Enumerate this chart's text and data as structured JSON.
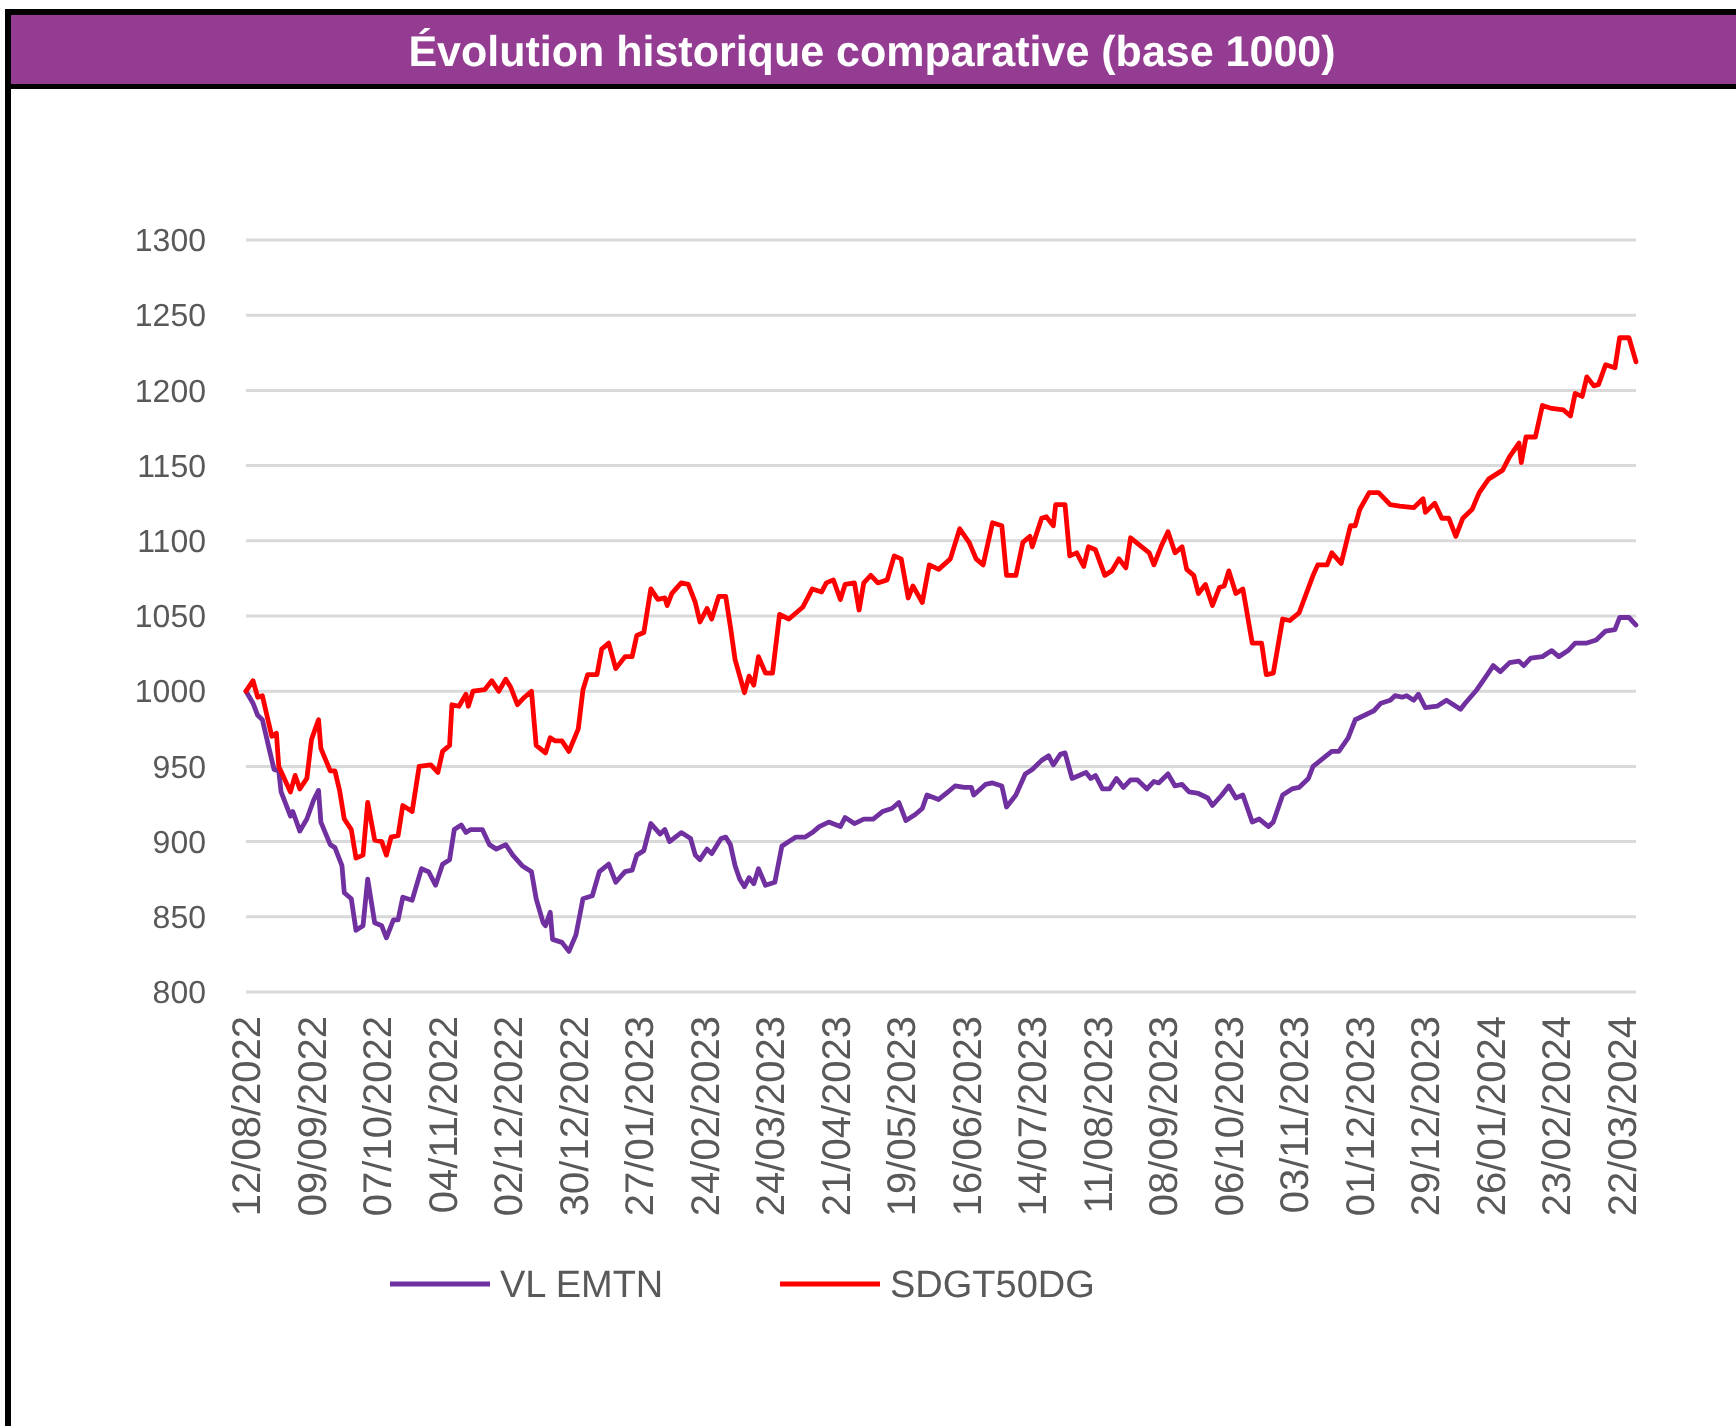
{
  "chart_data": {
    "type": "line",
    "title": "Évolution historique comparative (base 1000)",
    "xlim": [
      "2022-08-12",
      "2024-03-28"
    ],
    "xticks": [
      {
        "value": "2022-08-12",
        "label": "12/08/2022"
      },
      {
        "value": "2022-09-09",
        "label": "09/09/2022"
      },
      {
        "value": "2022-10-07",
        "label": "07/10/2022"
      },
      {
        "value": "2022-11-04",
        "label": "04/11/2022"
      },
      {
        "value": "2022-12-02",
        "label": "02/12/2022"
      },
      {
        "value": "2022-12-30",
        "label": "30/12/2022"
      },
      {
        "value": "2023-01-27",
        "label": "27/01/2023"
      },
      {
        "value": "2023-02-24",
        "label": "24/02/2023"
      },
      {
        "value": "2023-03-24",
        "label": "24/03/2023"
      },
      {
        "value": "2023-04-21",
        "label": "21/04/2023"
      },
      {
        "value": "2023-05-19",
        "label": "19/05/2023"
      },
      {
        "value": "2023-06-16",
        "label": "16/06/2023"
      },
      {
        "value": "2023-07-14",
        "label": "14/07/2023"
      },
      {
        "value": "2023-08-11",
        "label": "11/08/2023"
      },
      {
        "value": "2023-09-08",
        "label": "08/09/2023"
      },
      {
        "value": "2023-10-06",
        "label": "06/10/2023"
      },
      {
        "value": "2023-11-03",
        "label": "03/11/2023"
      },
      {
        "value": "2023-12-01",
        "label": "01/12/2023"
      },
      {
        "value": "2023-12-29",
        "label": "29/12/2023"
      },
      {
        "value": "2024-01-26",
        "label": "26/01/2024"
      },
      {
        "value": "2024-02-23",
        "label": "23/02/2024"
      },
      {
        "value": "2024-03-22",
        "label": "22/03/2024"
      }
    ],
    "ylim": [
      800,
      1300
    ],
    "yticks": [
      800,
      850,
      900,
      950,
      1000,
      1050,
      1100,
      1150,
      1200,
      1250,
      1300
    ],
    "grid": "y",
    "legend": "bottom",
    "series": [
      {
        "name": "VL EMTN",
        "color": "#7030a0",
        "x": [
          "2022-08-12",
          "2022-08-15",
          "2022-08-17",
          "2022-08-19",
          "2022-08-22",
          "2022-08-24",
          "2022-08-26",
          "2022-08-27",
          "2022-08-31",
          "2022-09-01",
          "2022-09-04",
          "2022-09-07",
          "2022-09-10",
          "2022-09-12",
          "2022-09-13",
          "2022-09-17",
          "2022-09-19",
          "2022-09-22",
          "2022-09-23",
          "2022-09-26",
          "2022-09-28",
          "2022-10-01",
          "2022-10-03",
          "2022-10-06",
          "2022-10-09",
          "2022-10-11",
          "2022-10-14",
          "2022-10-16",
          "2022-10-18",
          "2022-10-22",
          "2022-10-26",
          "2022-10-29",
          "2022-11-01",
          "2022-11-04",
          "2022-11-07",
          "2022-11-09",
          "2022-11-12",
          "2022-11-14",
          "2022-11-16",
          "2022-11-21",
          "2022-11-24",
          "2022-11-27",
          "2022-12-01",
          "2022-12-04",
          "2022-12-08",
          "2022-12-12",
          "2022-12-14",
          "2022-12-17",
          "2022-12-18",
          "2022-12-20",
          "2022-12-21",
          "2022-12-25",
          "2022-12-28",
          "2022-12-31",
          "2023-01-03",
          "2023-01-07",
          "2023-01-10",
          "2023-01-14",
          "2023-01-17",
          "2023-01-21",
          "2023-01-24",
          "2023-01-26",
          "2023-01-29",
          "2023-02-01",
          "2023-02-05",
          "2023-02-07",
          "2023-02-09",
          "2023-02-14",
          "2023-02-18",
          "2023-02-20",
          "2023-02-22",
          "2023-02-25",
          "2023-02-27",
          "2023-03-03",
          "2023-03-05",
          "2023-03-07",
          "2023-03-09",
          "2023-03-11",
          "2023-03-13",
          "2023-03-15",
          "2023-03-17",
          "2023-03-19",
          "2023-03-22",
          "2023-03-26",
          "2023-03-29",
          "2023-04-01",
          "2023-04-04",
          "2023-04-08",
          "2023-04-11",
          "2023-04-14",
          "2023-04-18",
          "2023-04-23",
          "2023-04-25",
          "2023-04-29",
          "2023-05-03",
          "2023-05-07",
          "2023-05-11",
          "2023-05-15",
          "2023-05-18",
          "2023-05-21",
          "2023-05-25",
          "2023-05-28",
          "2023-05-30",
          "2023-06-04",
          "2023-06-08",
          "2023-06-11",
          "2023-06-15",
          "2023-06-18",
          "2023-06-19",
          "2023-06-24",
          "2023-06-27",
          "2023-07-01",
          "2023-07-03",
          "2023-07-07",
          "2023-07-11",
          "2023-07-14",
          "2023-07-18",
          "2023-07-21",
          "2023-07-23",
          "2023-07-26",
          "2023-07-28",
          "2023-07-31",
          "2023-08-03",
          "2023-08-06",
          "2023-08-08",
          "2023-08-10",
          "2023-08-13",
          "2023-08-16",
          "2023-08-19",
          "2023-08-22",
          "2023-08-25",
          "2023-08-28",
          "2023-09-01",
          "2023-09-04",
          "2023-09-06",
          "2023-09-10",
          "2023-09-13",
          "2023-09-16",
          "2023-09-19",
          "2023-09-23",
          "2023-09-27",
          "2023-09-29",
          "2023-10-03",
          "2023-10-06",
          "2023-10-09",
          "2023-10-12",
          "2023-10-16",
          "2023-10-19",
          "2023-10-23",
          "2023-10-25",
          "2023-10-29",
          "2023-11-02",
          "2023-11-05",
          "2023-11-09",
          "2023-11-11",
          "2023-11-15",
          "2023-11-19",
          "2023-11-22",
          "2023-11-26",
          "2023-11-29",
          "2023-12-03",
          "2023-12-07",
          "2023-12-10",
          "2023-12-14",
          "2023-12-16",
          "2023-12-19",
          "2023-12-21",
          "2023-12-24",
          "2023-12-26",
          "2023-12-29",
          "2024-01-03",
          "2024-01-07",
          "2024-01-10",
          "2024-01-13",
          "2024-01-15",
          "2024-01-20",
          "2024-01-24",
          "2024-01-27",
          "2024-01-30",
          "2024-02-03",
          "2024-02-07",
          "2024-02-09",
          "2024-02-12",
          "2024-02-17",
          "2024-02-21",
          "2024-02-24",
          "2024-02-28",
          "2024-03-02",
          "2024-03-07",
          "2024-03-11",
          "2024-03-15",
          "2024-03-19",
          "2024-03-21",
          "2024-03-25",
          "2024-03-28"
        ],
        "values": [
          1000,
          992,
          984,
          981,
          961,
          948,
          947,
          933,
          917,
          920,
          907,
          915,
          928,
          934,
          913,
          898,
          896,
          884,
          866,
          862,
          841,
          844,
          875,
          846,
          844,
          836,
          848,
          848,
          863,
          861,
          882,
          880,
          871,
          885,
          888,
          908,
          911,
          906,
          908,
          908,
          898,
          895,
          898,
          891,
          884,
          880,
          862,
          846,
          844,
          853,
          835,
          833,
          827,
          838,
          862,
          864,
          880,
          885,
          873,
          880,
          881,
          891,
          894,
          912,
          905,
          908,
          900,
          906,
          902,
          891,
          888,
          895,
          892,
          902,
          903,
          898,
          884,
          875,
          870,
          876,
          872,
          882,
          871,
          873,
          897,
          900,
          903,
          903,
          906,
          910,
          913,
          910,
          916,
          912,
          915,
          915,
          920,
          922,
          926,
          914,
          918,
          922,
          931,
          928,
          933,
          937,
          936,
          936,
          931,
          938,
          939,
          937,
          923,
          931,
          945,
          948,
          954,
          957,
          951,
          958,
          959,
          942,
          944,
          946,
          942,
          944,
          935,
          935,
          942,
          936,
          941,
          941,
          935,
          940,
          939,
          945,
          937,
          938,
          933,
          932,
          929,
          924,
          931,
          937,
          929,
          931,
          913,
          915,
          910,
          913,
          931,
          935,
          936,
          942,
          950,
          955,
          960,
          960,
          969,
          981,
          984,
          987,
          992,
          994,
          997,
          996,
          997,
          994,
          998,
          989,
          990,
          994,
          991,
          988,
          992,
          1001,
          1010,
          1017,
          1013,
          1019,
          1020,
          1017,
          1022,
          1023,
          1027,
          1023,
          1027,
          1032,
          1032,
          1034,
          1040,
          1041,
          1049,
          1049,
          1044
        ]
      },
      {
        "name": "SDGT50DG",
        "color": "#ff0000",
        "x": [
          "2022-08-12",
          "2022-08-15",
          "2022-08-17",
          "2022-08-19",
          "2022-08-23",
          "2022-08-25",
          "2022-08-26",
          "2022-08-31",
          "2022-09-02",
          "2022-09-04",
          "2022-09-07",
          "2022-09-09",
          "2022-09-12",
          "2022-09-13",
          "2022-09-17",
          "2022-09-19",
          "2022-09-21",
          "2022-09-23",
          "2022-09-26",
          "2022-09-28",
          "2022-10-01",
          "2022-10-03",
          "2022-10-06",
          "2022-10-09",
          "2022-10-11",
          "2022-10-13",
          "2022-10-16",
          "2022-10-18",
          "2022-10-22",
          "2022-10-25",
          "2022-10-30",
          "2022-11-02",
          "2022-11-04",
          "2022-11-07",
          "2022-11-08",
          "2022-11-11",
          "2022-11-14",
          "2022-11-15",
          "2022-11-17",
          "2022-11-22",
          "2022-11-25",
          "2022-11-28",
          "2022-12-01",
          "2022-12-03",
          "2022-12-06",
          "2022-12-09",
          "2022-12-12",
          "2022-12-14",
          "2022-12-18",
          "2022-12-20",
          "2022-12-22",
          "2022-12-25",
          "2022-12-28",
          "2023-01-01",
          "2023-01-03",
          "2023-01-05",
          "2023-01-09",
          "2023-01-11",
          "2023-01-14",
          "2023-01-17",
          "2023-01-21",
          "2023-01-24",
          "2023-01-26",
          "2023-01-29",
          "2023-02-01",
          "2023-02-04",
          "2023-02-07",
          "2023-02-08",
          "2023-02-10",
          "2023-02-14",
          "2023-02-17",
          "2023-02-20",
          "2023-02-22",
          "2023-02-25",
          "2023-02-27",
          "2023-03-02",
          "2023-03-05",
          "2023-03-07",
          "2023-03-09",
          "2023-03-11",
          "2023-03-13",
          "2023-03-15",
          "2023-03-17",
          "2023-03-19",
          "2023-03-22",
          "2023-03-25",
          "2023-03-28",
          "2023-04-01",
          "2023-04-07",
          "2023-04-11",
          "2023-04-15",
          "2023-04-17",
          "2023-04-20",
          "2023-04-23",
          "2023-04-25",
          "2023-04-29",
          "2023-05-01",
          "2023-05-03",
          "2023-05-06",
          "2023-05-09",
          "2023-05-13",
          "2023-05-16",
          "2023-05-19",
          "2023-05-22",
          "2023-05-24",
          "2023-05-28",
          "2023-05-31",
          "2023-06-04",
          "2023-06-09",
          "2023-06-13",
          "2023-06-17",
          "2023-06-20",
          "2023-06-23",
          "2023-06-27",
          "2023-07-01",
          "2023-07-03",
          "2023-07-07",
          "2023-07-10",
          "2023-07-13",
          "2023-07-14",
          "2023-07-18",
          "2023-07-20",
          "2023-07-23",
          "2023-07-24",
          "2023-07-28",
          "2023-07-30",
          "2023-08-02",
          "2023-08-05",
          "2023-08-07",
          "2023-08-10",
          "2023-08-14",
          "2023-08-17",
          "2023-08-20",
          "2023-08-23",
          "2023-08-25",
          "2023-08-29",
          "2023-09-02",
          "2023-09-04",
          "2023-09-07",
          "2023-09-10",
          "2023-09-13",
          "2023-09-16",
          "2023-09-18",
          "2023-09-21",
          "2023-09-23",
          "2023-09-26",
          "2023-09-29",
          "2023-10-02",
          "2023-10-04",
          "2023-10-06",
          "2023-10-09",
          "2023-10-12",
          "2023-10-16",
          "2023-10-20",
          "2023-10-22",
          "2023-10-25",
          "2023-10-29",
          "2023-11-01",
          "2023-11-05",
          "2023-11-11",
          "2023-11-13",
          "2023-11-17",
          "2023-11-19",
          "2023-11-23",
          "2023-11-27",
          "2023-11-29",
          "2023-12-01",
          "2023-12-05",
          "2023-12-09",
          "2023-12-14",
          "2023-12-18",
          "2023-12-24",
          "2023-12-28",
          "2023-12-29",
          "2024-01-02",
          "2024-01-05",
          "2024-01-08",
          "2024-01-11",
          "2024-01-14",
          "2024-01-18",
          "2024-01-21",
          "2024-01-25",
          "2024-01-29",
          "2024-01-31",
          "2024-02-03",
          "2024-02-07",
          "2024-02-08",
          "2024-02-10",
          "2024-02-14",
          "2024-02-17",
          "2024-02-21",
          "2024-02-26",
          "2024-02-29",
          "2024-03-02",
          "2024-03-05",
          "2024-03-07",
          "2024-03-10",
          "2024-03-12",
          "2024-03-15",
          "2024-03-19",
          "2024-03-21",
          "2024-03-25",
          "2024-03-28"
        ],
        "values": [
          1000,
          1007,
          996,
          997,
          970,
          972,
          950,
          933,
          944,
          935,
          942,
          968,
          981,
          962,
          947,
          947,
          934,
          915,
          908,
          889,
          891,
          926,
          901,
          900,
          891,
          903,
          904,
          924,
          920,
          950,
          951,
          946,
          960,
          964,
          991,
          990,
          998,
          990,
          1000,
          1001,
          1007,
          1000,
          1008,
          1003,
          991,
          996,
          1000,
          964,
          959,
          969,
          967,
          967,
          960,
          975,
          1001,
          1011,
          1011,
          1028,
          1032,
          1015,
          1023,
          1023,
          1037,
          1039,
          1068,
          1061,
          1062,
          1057,
          1065,
          1072,
          1071,
          1059,
          1046,
          1055,
          1048,
          1063,
          1063,
          1043,
          1021,
          1010,
          999,
          1010,
          1004,
          1023,
          1012,
          1012,
          1051,
          1048,
          1056,
          1068,
          1066,
          1072,
          1074,
          1061,
          1071,
          1072,
          1054,
          1072,
          1077,
          1072,
          1074,
          1090,
          1088,
          1062,
          1070,
          1059,
          1084,
          1081,
          1088,
          1108,
          1099,
          1088,
          1084,
          1112,
          1110,
          1077,
          1077,
          1099,
          1103,
          1096,
          1115,
          1116,
          1110,
          1124,
          1124,
          1090,
          1092,
          1083,
          1096,
          1094,
          1077,
          1080,
          1088,
          1082,
          1102,
          1097,
          1092,
          1084,
          1096,
          1106,
          1092,
          1096,
          1081,
          1077,
          1065,
          1071,
          1057,
          1069,
          1070,
          1080,
          1065,
          1068,
          1032,
          1032,
          1011,
          1012,
          1048,
          1047,
          1052,
          1077,
          1084,
          1084,
          1092,
          1085,
          1110,
          1110,
          1121,
          1132,
          1132,
          1124,
          1123,
          1122,
          1128,
          1119,
          1125,
          1115,
          1115,
          1103,
          1115,
          1121,
          1132,
          1141,
          1145,
          1147,
          1156,
          1165,
          1152,
          1169,
          1169,
          1190,
          1188,
          1187,
          1183,
          1198,
          1196,
          1209,
          1203,
          1204,
          1217,
          1215,
          1235,
          1235,
          1219
        ]
      }
    ]
  }
}
